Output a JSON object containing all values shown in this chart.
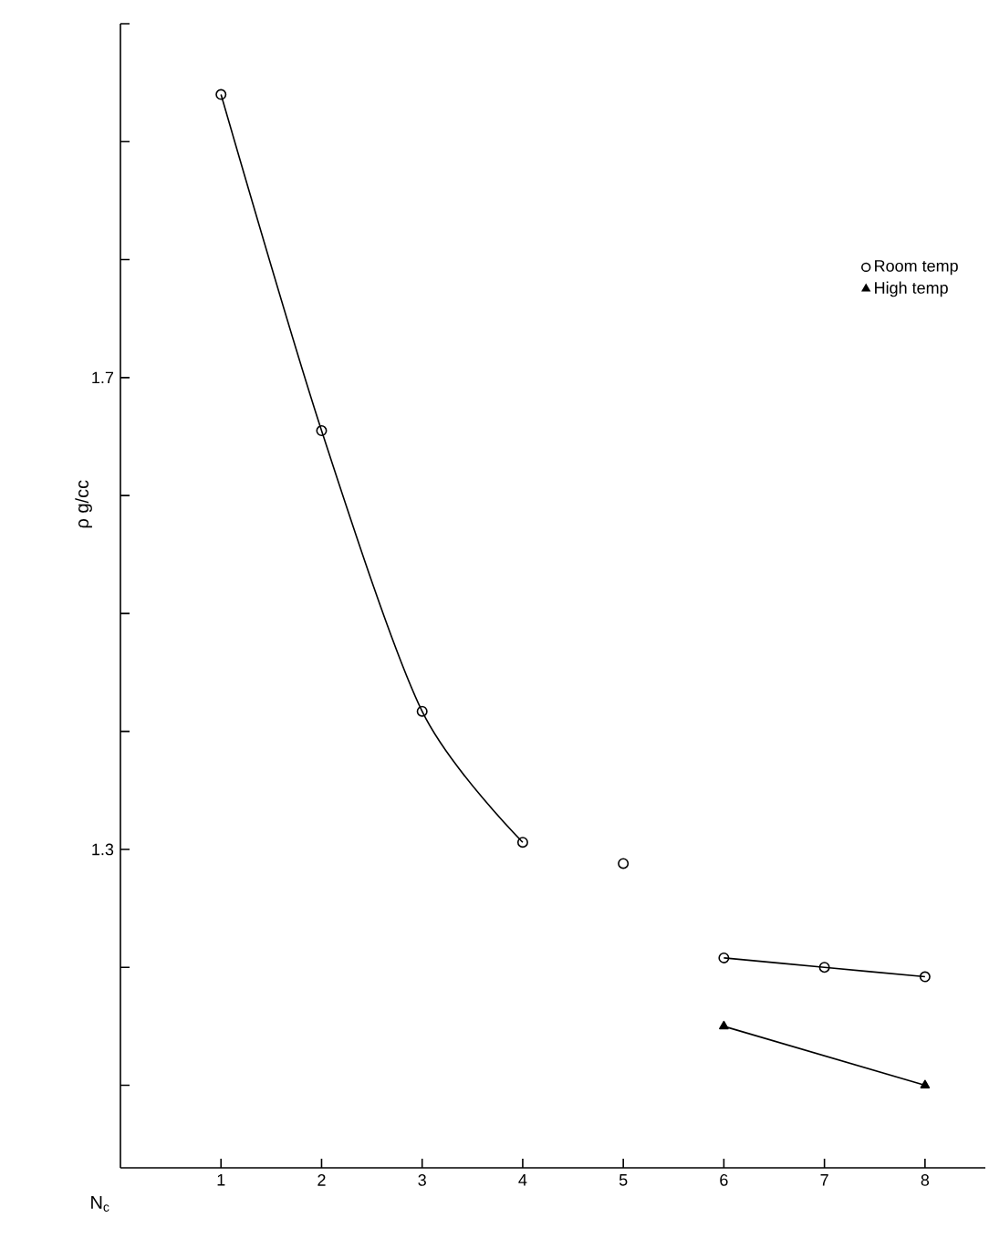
{
  "chart_data": {
    "type": "line",
    "xlabel": "N$_{c}$",
    "ylabel": "ρ g/cc",
    "xlim": [
      0,
      8.6
    ],
    "xticks": [
      1,
      2,
      3,
      4,
      5,
      6,
      7,
      8
    ],
    "ylim": [
      1.03,
      2.0
    ],
    "yticks": [
      {
        "value": 1.1,
        "label": null
      },
      {
        "value": 1.2,
        "label": null
      },
      1.3,
      {
        "value": 1.4,
        "label": null
      },
      {
        "value": 1.5,
        "label": null
      },
      {
        "value": 1.6,
        "label": null
      },
      1.7,
      {
        "value": 1.8,
        "label": null
      },
      {
        "value": 1.9,
        "label": null
      },
      {
        "value": 2.0,
        "label": null
      }
    ],
    "legend": "top right",
    "line_style": "solid",
    "series": [
      {
        "name": "Room temp",
        "color": "#000000",
        "marker": "circle",
        "x": [
          1,
          2,
          3,
          4
        ],
        "values": [
          1.94,
          1.655,
          1.417,
          1.306
        ]
      },
      {
        "color": "#000000",
        "marker": "circle",
        "type": "scatter",
        "x": [
          5
        ],
        "values": [
          1.288
        ]
      },
      {
        "color": "#000000",
        "marker": "circle",
        "x": [
          6,
          7,
          8
        ],
        "values": [
          1.208,
          1.2,
          1.192
        ]
      },
      {
        "name": "High temp",
        "color": "#000000",
        "marker": "triangle",
        "x": [
          6,
          8
        ],
        "values": [
          1.15,
          1.1
        ]
      }
    ]
  }
}
